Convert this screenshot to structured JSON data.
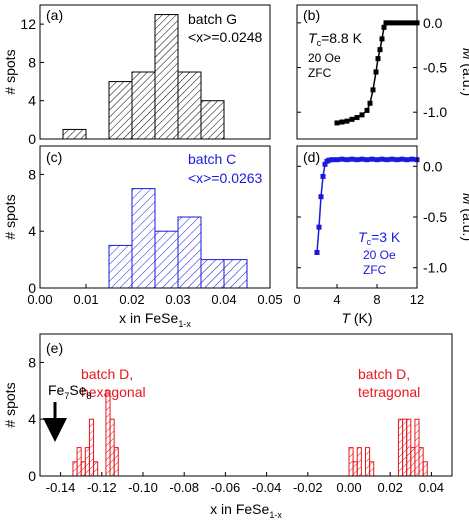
{
  "colors": {
    "black": "#000000",
    "blue": "#1a1adf",
    "red": "#e8171e"
  },
  "chart_data": [
    {
      "id": "a",
      "type": "bar",
      "panel_label": "(a)",
      "annotation_lines": [
        "batch G",
        "<x>=0.0248"
      ],
      "xlabel": "",
      "ylabel": "# spots",
      "xlim": [
        0,
        0.05
      ],
      "ylim": [
        0,
        14
      ],
      "xticks": [],
      "yticks": [
        0,
        4,
        8,
        12
      ],
      "bin_width": 0.005,
      "bins": [
        {
          "x": 0.01,
          "count": 1
        },
        {
          "x": 0.02,
          "count": 6
        },
        {
          "x": 0.025,
          "count": 7
        },
        {
          "x": 0.03,
          "count": 13
        },
        {
          "x": 0.035,
          "count": 7
        },
        {
          "x": 0.04,
          "count": 4
        }
      ],
      "color": "#000000"
    },
    {
      "id": "b",
      "type": "line",
      "panel_label": "(b)",
      "annotation_lines": [
        "Tc=8.8 K",
        "20 Oe",
        "ZFC"
      ],
      "xlabel": "",
      "ylabel": "M (a.u.)",
      "y_axis_side": "right",
      "xlim": [
        0,
        12
      ],
      "ylim": [
        -1.3,
        0.2
      ],
      "xticks": [],
      "yticks": [
        0.0,
        -0.5,
        -1.0
      ],
      "x": [
        4.0,
        4.5,
        5.0,
        5.5,
        6.0,
        6.5,
        7.0,
        7.3,
        7.6,
        7.9,
        8.1,
        8.3,
        8.5,
        8.7,
        8.9,
        9.2,
        9.6,
        10.0,
        10.5,
        11.0,
        11.5,
        12.0
      ],
      "y": [
        -1.12,
        -1.11,
        -1.1,
        -1.08,
        -1.06,
        -1.03,
        -0.98,
        -0.9,
        -0.75,
        -0.55,
        -0.4,
        -0.3,
        -0.18,
        -0.05,
        0.0,
        0.0,
        0.0,
        0.0,
        0.0,
        0.0,
        0.0,
        0.0
      ],
      "color": "#000000"
    },
    {
      "id": "c",
      "type": "bar",
      "panel_label": "(c)",
      "annotation_lines": [
        "batch C",
        "<x>=0.0263"
      ],
      "xlabel": "x in FeSe1-x",
      "ylabel": "# spots",
      "xlim": [
        0,
        0.05
      ],
      "ylim": [
        0,
        10
      ],
      "xticks": [
        0.0,
        0.01,
        0.02,
        0.03,
        0.04,
        0.05
      ],
      "xticklabels": [
        "0.00",
        "0.01",
        "0.02",
        "0.03",
        "0.04",
        "0.05"
      ],
      "yticks": [
        0,
        4,
        8
      ],
      "bin_width": 0.005,
      "bins": [
        {
          "x": 0.02,
          "count": 3
        },
        {
          "x": 0.025,
          "count": 7
        },
        {
          "x": 0.03,
          "count": 4
        },
        {
          "x": 0.035,
          "count": 5
        },
        {
          "x": 0.04,
          "count": 2
        },
        {
          "x": 0.045,
          "count": 2
        }
      ],
      "color": "#1a1adf"
    },
    {
      "id": "d",
      "type": "line",
      "panel_label": "(d)",
      "annotation_lines": [
        "Tc=3 K",
        "20 Oe",
        "ZFC"
      ],
      "xlabel": "T (K)",
      "ylabel": "M (a.u.)",
      "y_axis_side": "right",
      "xlim": [
        0,
        12
      ],
      "ylim": [
        -1.2,
        0.2
      ],
      "xticks": [
        0,
        4,
        8,
        12
      ],
      "xticklabels": [
        "0",
        "4",
        "8",
        "12"
      ],
      "yticks": [
        0.0,
        -0.5,
        -1.0
      ],
      "x": [
        2.0,
        2.2,
        2.4,
        2.6,
        2.8,
        3.0,
        3.2,
        3.5,
        4.0,
        4.5,
        5.0,
        5.5,
        6.0,
        6.5,
        7.0,
        7.5,
        8.0,
        8.5,
        9.0,
        9.5,
        10.0,
        10.5,
        11.0,
        11.5,
        12.0
      ],
      "y": [
        -0.85,
        -0.6,
        -0.3,
        -0.1,
        0.02,
        0.05,
        0.06,
        0.065,
        0.065,
        0.07,
        0.065,
        0.07,
        0.065,
        0.07,
        0.065,
        0.07,
        0.065,
        0.07,
        0.065,
        0.07,
        0.065,
        0.07,
        0.065,
        0.07,
        0.065
      ],
      "color": "#1a1adf"
    },
    {
      "id": "e",
      "type": "bar",
      "panel_label": "(e)",
      "annotation_lines_left": [
        "batch D,",
        "hexagonal"
      ],
      "annotation_lines_right": [
        "batch D,",
        "tetragonal"
      ],
      "arrow_label": "Fe7Se8",
      "arrow_x": -0.145,
      "xlabel": "x in FeSe1-x",
      "ylabel": "# spots",
      "xlim": [
        -0.15,
        0.05
      ],
      "ylim": [
        0,
        10
      ],
      "xticks": [
        -0.14,
        -0.12,
        -0.1,
        -0.08,
        -0.06,
        -0.04,
        -0.02,
        0.0,
        0.02,
        0.04
      ],
      "xticklabels": [
        "-0.14",
        "-0.12",
        "-0.10",
        "-0.08",
        "-0.06",
        "-0.04",
        "-0.02",
        "0.00",
        "0.02",
        "0.04"
      ],
      "yticks": [
        0,
        4,
        8
      ],
      "bin_width": 0.002,
      "bins": [
        {
          "x": -0.132,
          "count": 1
        },
        {
          "x": -0.13,
          "count": 2
        },
        {
          "x": -0.128,
          "count": 1
        },
        {
          "x": -0.126,
          "count": 2
        },
        {
          "x": -0.124,
          "count": 4
        },
        {
          "x": -0.122,
          "count": 1
        },
        {
          "x": -0.116,
          "count": 6
        },
        {
          "x": -0.114,
          "count": 4
        },
        {
          "x": -0.112,
          "count": 2
        },
        {
          "x": 0.002,
          "count": 2
        },
        {
          "x": 0.004,
          "count": 1
        },
        {
          "x": 0.006,
          "count": 2
        },
        {
          "x": 0.01,
          "count": 2
        },
        {
          "x": 0.012,
          "count": 1
        },
        {
          "x": 0.026,
          "count": 4
        },
        {
          "x": 0.028,
          "count": 4
        },
        {
          "x": 0.03,
          "count": 4
        },
        {
          "x": 0.032,
          "count": 2
        },
        {
          "x": 0.034,
          "count": 4
        },
        {
          "x": 0.036,
          "count": 2
        },
        {
          "x": 0.038,
          "count": 1
        }
      ],
      "color": "#e8171e"
    }
  ]
}
